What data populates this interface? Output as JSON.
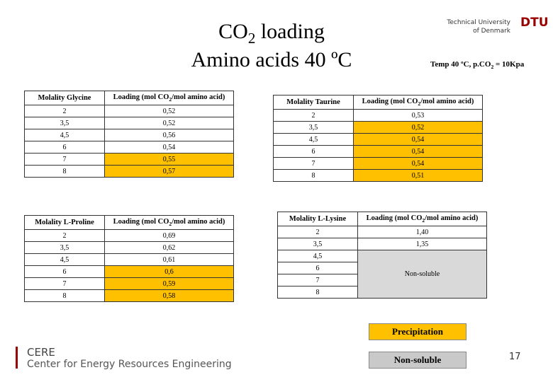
{
  "title": {
    "line1": [
      "CO",
      "2",
      " loading"
    ],
    "line2": "Amino acids 40 ºC"
  },
  "logo": {
    "line1": "Technical University",
    "line2": "of Denmark",
    "mark": "DTU"
  },
  "conditions": [
    "Temp 40 ºC,  p.CO",
    "2",
    " = 10Kpa"
  ],
  "highlight_color": "#ffc000",
  "tables": [
    {
      "molality_header": "Molality Glycine",
      "loading_header": [
        "Loading (mol CO",
        "2",
        "/mol amino acid)"
      ],
      "rows": [
        {
          "molality": "2",
          "loading": "0,52",
          "highlight": false
        },
        {
          "molality": "3,5",
          "loading": "0,52",
          "highlight": false
        },
        {
          "molality": "4,5",
          "loading": "0,56",
          "highlight": false
        },
        {
          "molality": "6",
          "loading": "0,54",
          "highlight": false
        },
        {
          "molality": "7",
          "loading": "0,55",
          "highlight": true
        },
        {
          "molality": "8",
          "loading": "0,57",
          "highlight": true
        }
      ]
    },
    {
      "molality_header": "Molality Taurine",
      "loading_header": [
        "Loading (mol CO",
        "2",
        "/mol amino acid)"
      ],
      "rows": [
        {
          "molality": "2",
          "loading": "0,53",
          "highlight": false
        },
        {
          "molality": "3,5",
          "loading": "0,52",
          "highlight": true
        },
        {
          "molality": "4,5",
          "loading": "0,54",
          "highlight": true
        },
        {
          "molality": "6",
          "loading": "0,54",
          "highlight": true
        },
        {
          "molality": "7",
          "loading": "0,54",
          "highlight": true
        },
        {
          "molality": "8",
          "loading": "0,51",
          "highlight": true
        }
      ]
    },
    {
      "molality_header": "Molality L-Proline",
      "loading_header": [
        "Loading (mol CO",
        "2",
        "/mol amino acid)"
      ],
      "rows": [
        {
          "molality": "2",
          "loading": "0,69",
          "highlight": false
        },
        {
          "molality": "3,5",
          "loading": "0,62",
          "highlight": false
        },
        {
          "molality": "4,5",
          "loading": "0,61",
          "highlight": false
        },
        {
          "molality": "6",
          "loading": "0,6",
          "highlight": true
        },
        {
          "molality": "7",
          "loading": "0,59",
          "highlight": true
        },
        {
          "molality": "8",
          "loading": "0,58",
          "highlight": true
        }
      ]
    },
    {
      "molality_header": "Molality L-Lysine",
      "loading_header": [
        "Loading (mol CO",
        "2",
        "/mol amino acid)"
      ],
      "rows": [
        {
          "molality": "2",
          "loading": "1,40",
          "highlight": false
        },
        {
          "molality": "3,5",
          "loading": "1,35",
          "highlight": false
        },
        {
          "molality": "4,5"
        },
        {
          "molality": "6"
        },
        {
          "molality": "7"
        },
        {
          "molality": "8"
        }
      ],
      "merged_loading": "Non-soluble",
      "merged_color": "#d9d9d9"
    }
  ],
  "legend": [
    {
      "label": "Precipitation",
      "color": "#ffc000"
    },
    {
      "label": "Non-soluble",
      "color": "#c9c9c9"
    }
  ],
  "footer": {
    "org": "CERE",
    "name": "Center for Energy Resources Engineering",
    "page": "17"
  }
}
